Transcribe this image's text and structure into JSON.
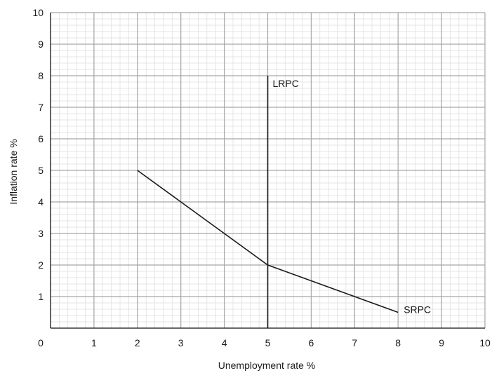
{
  "chart_data": {
    "type": "line",
    "title": "",
    "xlabel": "Unemployment rate %",
    "ylabel": "Inflation rate %",
    "xlim": [
      0,
      10
    ],
    "ylim": [
      0,
      10
    ],
    "x_ticks": [
      0,
      1,
      2,
      3,
      4,
      5,
      6,
      7,
      8,
      9,
      10
    ],
    "y_ticks": [
      1,
      2,
      3,
      4,
      5,
      6,
      7,
      8,
      9,
      10
    ],
    "grid": true,
    "minor_grid": true,
    "series": [
      {
        "name": "SRPC",
        "x": [
          2,
          3,
          4,
          5,
          6,
          7,
          8
        ],
        "y": [
          5,
          4,
          3,
          2,
          1.5,
          1,
          0.5
        ]
      },
      {
        "name": "LRPC",
        "x": [
          5,
          5
        ],
        "y": [
          0,
          8
        ]
      }
    ],
    "colors": {
      "curve": "#1a1a1a",
      "major_grid": "#a6a6a6",
      "minor_grid": "#dcdcdc",
      "axis": "#1a1a1a"
    }
  }
}
